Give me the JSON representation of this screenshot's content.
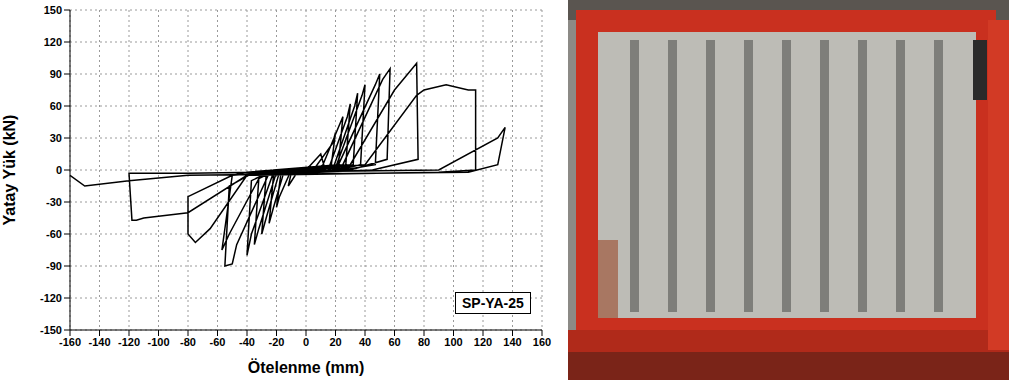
{
  "chart_data": {
    "type": "line",
    "x_label": "Ötelenme (mm)",
    "y_label": "Yatay Yük (kN)",
    "annotation": "SP-YA-25",
    "color": "#000000",
    "grid": true,
    "xlim": [
      -160,
      160
    ],
    "xticks": [
      -160,
      -140,
      -120,
      -100,
      -80,
      -60,
      -40,
      -20,
      0,
      20,
      40,
      60,
      80,
      100,
      120,
      140,
      160
    ],
    "ylim": [
      -150,
      150
    ],
    "yticks": [
      -150,
      -120,
      -90,
      -60,
      -30,
      0,
      30,
      60,
      90,
      120,
      150
    ],
    "x": [
      0,
      10,
      12,
      5,
      -5,
      -12,
      -10,
      -3,
      5,
      18,
      20,
      17,
      10,
      -10,
      -18,
      -20,
      -17,
      -10,
      10,
      22,
      25,
      22,
      15,
      -15,
      -22,
      -25,
      -22,
      -15,
      15,
      28,
      30,
      27,
      18,
      -18,
      -27,
      -30,
      -27,
      -18,
      18,
      33,
      35,
      32,
      20,
      -20,
      -32,
      -35,
      -32,
      -20,
      20,
      38,
      40,
      37,
      22,
      -22,
      -37,
      -40,
      -37,
      -22,
      22,
      47,
      50,
      47,
      25,
      -25,
      -47,
      -50,
      -55,
      -52,
      -35,
      25,
      52,
      57,
      55,
      30,
      -30,
      -52,
      -57,
      -50,
      -40,
      30,
      60,
      75,
      76,
      45,
      -40,
      -65,
      -75,
      -80,
      -80,
      -50,
      40,
      75,
      80,
      95,
      110,
      115,
      115,
      90,
      -40,
      -80,
      -110,
      -115,
      -118,
      -120,
      -80,
      90,
      130,
      135,
      130,
      110,
      -80,
      -120,
      -150,
      -160
    ],
    "values": [
      0,
      15,
      5,
      0,
      0,
      -15,
      -3,
      0,
      0,
      25,
      35,
      3,
      0,
      0,
      -25,
      -35,
      -3,
      0,
      0,
      40,
      50,
      5,
      0,
      -2,
      -35,
      -50,
      -5,
      0,
      0,
      50,
      62,
      5,
      0,
      -2,
      -45,
      -60,
      -5,
      0,
      0,
      60,
      72,
      5,
      0,
      -2,
      -55,
      -70,
      -8,
      0,
      2,
      70,
      80,
      5,
      0,
      -2,
      -60,
      -80,
      -10,
      0,
      5,
      80,
      90,
      5,
      0,
      -3,
      -70,
      -88,
      -90,
      -15,
      -2,
      5,
      85,
      95,
      10,
      0,
      -3,
      -60,
      -75,
      -5,
      -2,
      5,
      75,
      100,
      10,
      0,
      -5,
      -55,
      -68,
      -60,
      -25,
      -5,
      5,
      70,
      75,
      80,
      75,
      75,
      0,
      -2,
      -5,
      -40,
      -45,
      -47,
      -47,
      -3,
      -3,
      0,
      30,
      40,
      5,
      -2,
      -5,
      -10,
      -15,
      -5
    ]
  }
}
